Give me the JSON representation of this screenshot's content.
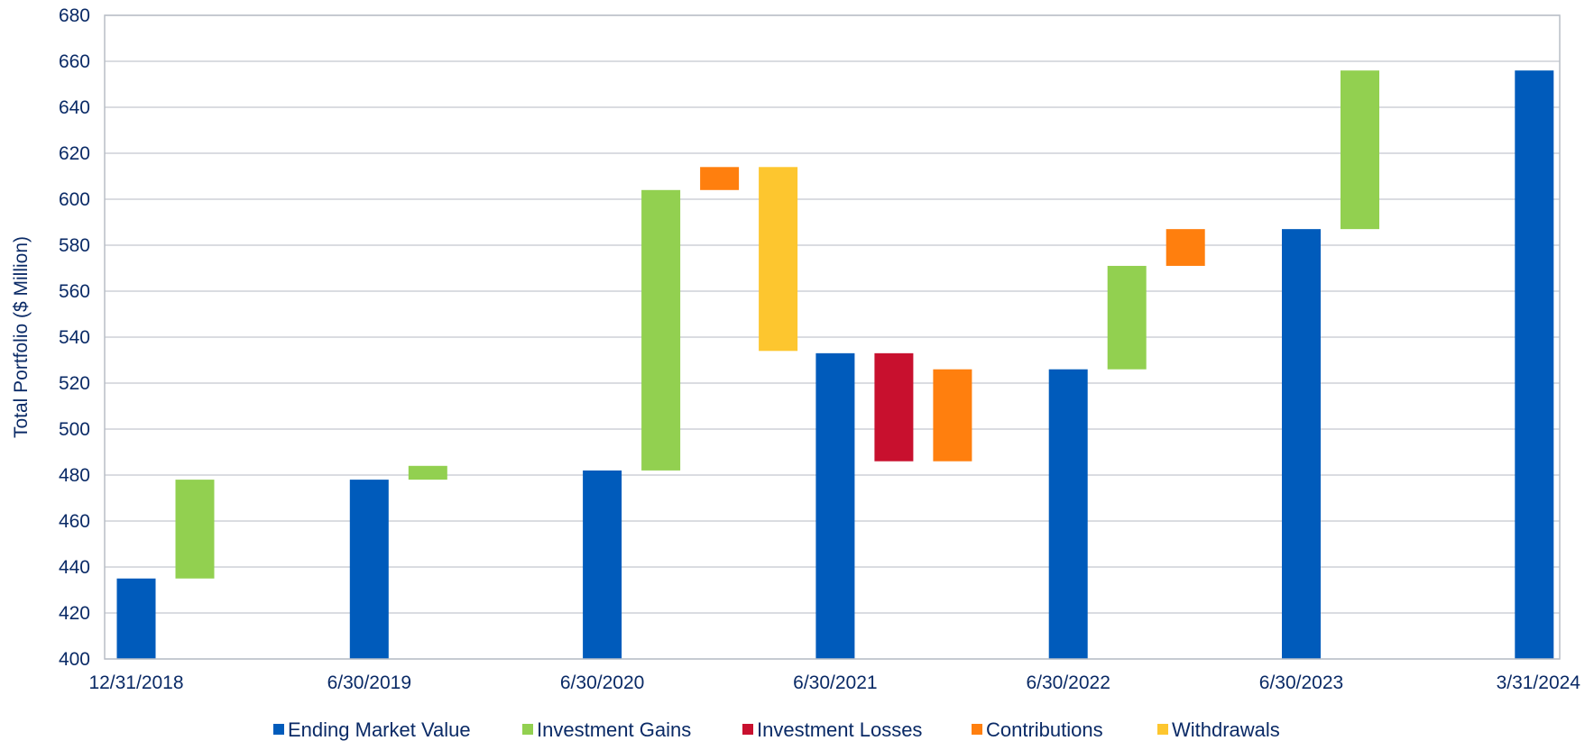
{
  "chart_data": {
    "type": "bar",
    "subtype": "waterfall",
    "title": "",
    "xlabel": "",
    "ylabel": "Total Portfolio ($ Million)",
    "ylim": [
      400,
      680
    ],
    "ytick_step": 20,
    "grid": true,
    "legend_position": "bottom",
    "x_tick_labels": [
      "12/31/2018",
      "6/30/2019",
      "6/30/2020",
      "6/30/2021",
      "6/30/2022",
      "6/30/2023",
      "3/31/2024"
    ],
    "series": [
      {
        "name": "Ending Market Value",
        "color": "#005BBB"
      },
      {
        "name": "Investment Gains",
        "color": "#92D050"
      },
      {
        "name": "Investment Losses",
        "color": "#C8102E"
      },
      {
        "name": "Contributions",
        "color": "#FF7F0E"
      },
      {
        "name": "Withdrawals",
        "color": "#FDC62F"
      }
    ],
    "bars": [
      {
        "series": "Ending Market Value",
        "position": 0,
        "low": 400,
        "high": 435
      },
      {
        "series": "Investment Gains",
        "position": 0.25,
        "low": 435,
        "high": 478
      },
      {
        "series": "Ending Market Value",
        "position": 1,
        "low": 400,
        "high": 478
      },
      {
        "series": "Investment Gains",
        "position": 1.25,
        "low": 478,
        "high": 484
      },
      {
        "series": "Ending Market Value",
        "position": 2,
        "low": 400,
        "high": 482
      },
      {
        "series": "Investment Gains",
        "position": 2.25,
        "low": 482,
        "high": 604
      },
      {
        "series": "Contributions",
        "position": 2.5,
        "low": 604,
        "high": 614
      },
      {
        "series": "Withdrawals",
        "position": 2.75,
        "low": 534,
        "high": 614
      },
      {
        "series": "Ending Market Value",
        "position": 3,
        "low": 400,
        "high": 533
      },
      {
        "series": "Investment Losses",
        "position": 3.25,
        "low": 486,
        "high": 533
      },
      {
        "series": "Contributions",
        "position": 3.5,
        "low": 486,
        "high": 526
      },
      {
        "series": "Ending Market Value",
        "position": 4,
        "low": 400,
        "high": 526
      },
      {
        "series": "Investment Gains",
        "position": 4.25,
        "low": 526,
        "high": 571
      },
      {
        "series": "Contributions",
        "position": 4.5,
        "low": 571,
        "high": 587
      },
      {
        "series": "Ending Market Value",
        "position": 5,
        "low": 400,
        "high": 587
      },
      {
        "series": "Investment Gains",
        "position": 5.25,
        "low": 587,
        "high": 656
      },
      {
        "series": "Ending Market Value",
        "position": 6,
        "low": 400,
        "high": 656
      }
    ]
  }
}
